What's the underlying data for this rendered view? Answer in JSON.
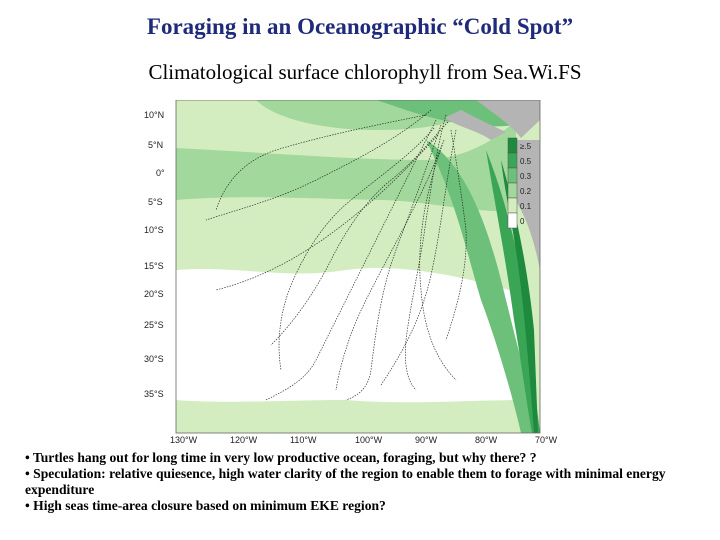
{
  "slide": {
    "title": "Foraging in an Oceanographic “Cold Spot”",
    "subtitle": "Climatological surface chlorophyll from Sea.Wi.FS"
  },
  "map": {
    "lat_labels": [
      "10°N",
      "5°N",
      "0°",
      "5°S",
      "10°S",
      "15°S",
      "20°S",
      "25°S",
      "30°S",
      "35°S"
    ],
    "lon_labels": [
      "130°W",
      "120°W",
      "110°W",
      "100°W",
      "90°W",
      "80°W",
      "70°W"
    ],
    "colorbar": {
      "labels": [
        "≥.5",
        "0.5",
        "0.3",
        "0.2",
        "0.1",
        "0"
      ],
      "colors": [
        "#1e8a3e",
        "#3aa655",
        "#6cc07a",
        "#a3d89c",
        "#d4edc0",
        "#ffffff"
      ]
    },
    "colors": {
      "land": "#b4b4b4",
      "ocean_white": "#ffffff",
      "chl_low": "#d4edc0",
      "chl_mid": "#a3d89c",
      "chl_high": "#6cc07a",
      "chl_very_high": "#3aa655",
      "chl_max": "#1e8a3e",
      "tracks": "#111111"
    }
  },
  "bullets": [
    "• Turtles hang out for long time in very low productive ocean, foraging, but why there? ?",
    "• Speculation: relative quiesence, high water clarity of the region to enable them to forage with minimal energy expenditure",
    "• High seas time-area closure based on minimum EKE region?"
  ]
}
